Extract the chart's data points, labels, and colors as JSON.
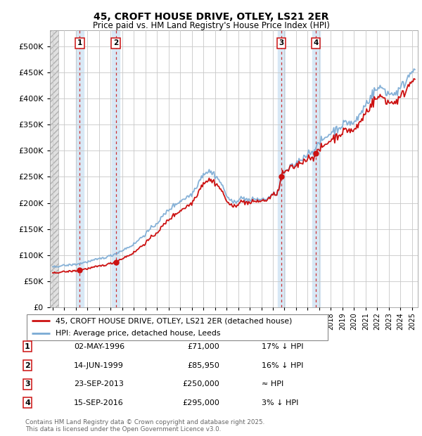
{
  "title": "45, CROFT HOUSE DRIVE, OTLEY, LS21 2ER",
  "subtitle": "Price paid vs. HM Land Registry's House Price Index (HPI)",
  "ytick_values": [
    0,
    50000,
    100000,
    150000,
    200000,
    250000,
    300000,
    350000,
    400000,
    450000,
    500000
  ],
  "ylim": [
    0,
    530000
  ],
  "xlim_start": 1993.75,
  "xlim_end": 2025.5,
  "hpi_color": "#7aaad4",
  "price_color": "#cc1111",
  "background_color": "#ffffff",
  "sale_highlight_color": "#d8e8f5",
  "grid_color": "#c8c8c8",
  "transactions": [
    {
      "num": 1,
      "date": "02-MAY-1996",
      "year": 1996.33,
      "price": 71000,
      "pct": "17%",
      "dir": "↓"
    },
    {
      "num": 2,
      "date": "14-JUN-1999",
      "year": 1999.45,
      "price": 85950,
      "pct": "16%",
      "dir": "↓"
    },
    {
      "num": 3,
      "date": "23-SEP-2013",
      "year": 2013.73,
      "price": 250000,
      "pct": "≈",
      "dir": ""
    },
    {
      "num": 4,
      "date": "15-SEP-2016",
      "year": 2016.71,
      "price": 295000,
      "pct": "3%",
      "dir": "↓"
    }
  ],
  "legend_entries": [
    "45, CROFT HOUSE DRIVE, OTLEY, LS21 2ER (detached house)",
    "HPI: Average price, detached house, Leeds"
  ],
  "footer": "Contains HM Land Registry data © Crown copyright and database right 2025.\nThis data is licensed under the Open Government Licence v3.0.",
  "xtick_years": [
    1994,
    1995,
    1996,
    1997,
    1998,
    1999,
    2000,
    2001,
    2002,
    2003,
    2004,
    2005,
    2006,
    2007,
    2008,
    2009,
    2010,
    2011,
    2012,
    2013,
    2014,
    2015,
    2016,
    2017,
    2018,
    2019,
    2020,
    2021,
    2022,
    2023,
    2024,
    2025
  ]
}
